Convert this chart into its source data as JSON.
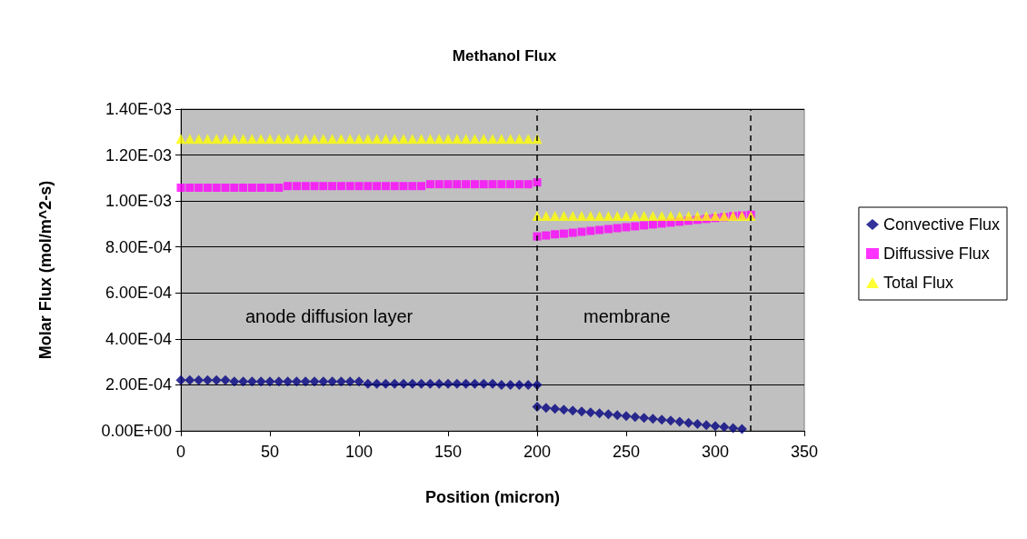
{
  "chart_data": {
    "type": "scatter",
    "title": "Methanol Flux",
    "xlabel": "Position (micron)",
    "ylabel": "Molar Flux (mol/m^2-s)",
    "xlim": [
      0,
      350
    ],
    "xticks": [
      0,
      50,
      100,
      150,
      200,
      250,
      300,
      350
    ],
    "ylim": [
      0,
      0.0014
    ],
    "yticks": [
      {
        "value": 0,
        "label": "0.00E+00"
      },
      {
        "value": 0.0002,
        "label": "2.00E-04"
      },
      {
        "value": 0.0004,
        "label": "4.00E-04"
      },
      {
        "value": 0.0006,
        "label": "6.00E-04"
      },
      {
        "value": 0.0008,
        "label": "8.00E-04"
      },
      {
        "value": 0.001,
        "label": "1.00E-03"
      },
      {
        "value": 0.0012,
        "label": "1.20E-03"
      },
      {
        "value": 0.0014,
        "label": "1.40E-03"
      }
    ],
    "grid": "y",
    "legend": "right",
    "series": [
      {
        "name": "Convective Flux",
        "color": "#000080",
        "marker": "diamond",
        "x": [
          0,
          5,
          10,
          15,
          20,
          25,
          30,
          35,
          40,
          45,
          50,
          55,
          60,
          65,
          70,
          75,
          80,
          85,
          90,
          95,
          100,
          105,
          110,
          115,
          120,
          125,
          130,
          135,
          140,
          145,
          150,
          155,
          160,
          165,
          170,
          175,
          180,
          185,
          190,
          195,
          200,
          200,
          205,
          210,
          215,
          220,
          225,
          230,
          235,
          240,
          245,
          250,
          255,
          260,
          265,
          270,
          275,
          280,
          285,
          290,
          295,
          300,
          305,
          310,
          315
        ],
        "values": [
          0.00022,
          0.00022,
          0.00022,
          0.00022,
          0.00022,
          0.00022,
          0.000215,
          0.000215,
          0.000215,
          0.000215,
          0.000215,
          0.000215,
          0.000215,
          0.000215,
          0.000215,
          0.000215,
          0.000215,
          0.000215,
          0.000215,
          0.000215,
          0.000215,
          0.000205,
          0.000205,
          0.000205,
          0.000205,
          0.000205,
          0.000205,
          0.000205,
          0.000205,
          0.000205,
          0.000205,
          0.000205,
          0.000205,
          0.000205,
          0.000205,
          0.000205,
          0.0002,
          0.0002,
          0.0002,
          0.0002,
          0.0002,
          0.000105,
          0.0001,
          9.6e-05,
          9.2e-05,
          8.8e-05,
          8.4e-05,
          8e-05,
          7.6e-05,
          7.2e-05,
          6.8e-05,
          6.4e-05,
          6e-05,
          5.6e-05,
          5.2e-05,
          4.8e-05,
          4.4e-05,
          4e-05,
          3.5e-05,
          3e-05,
          2.5e-05,
          2.1e-05,
          1.7e-05,
          1.2e-05,
          8e-06
        ]
      },
      {
        "name": "Diffussive Flux",
        "color": "#ff00ff",
        "marker": "square",
        "x": [
          0,
          5,
          10,
          15,
          20,
          25,
          30,
          35,
          40,
          45,
          50,
          55,
          60,
          65,
          70,
          75,
          80,
          85,
          90,
          95,
          100,
          105,
          110,
          115,
          120,
          125,
          130,
          135,
          140,
          145,
          150,
          155,
          160,
          165,
          170,
          175,
          180,
          185,
          190,
          195,
          200,
          200,
          205,
          210,
          215,
          220,
          225,
          230,
          235,
          240,
          245,
          250,
          255,
          260,
          265,
          270,
          275,
          280,
          285,
          290,
          295,
          300,
          305,
          310,
          315,
          320
        ],
        "values": [
          0.001058,
          0.001058,
          0.001058,
          0.001058,
          0.001058,
          0.001058,
          0.001058,
          0.001058,
          0.001058,
          0.001058,
          0.001058,
          0.001058,
          0.001065,
          0.001065,
          0.001065,
          0.001065,
          0.001065,
          0.001065,
          0.001065,
          0.001065,
          0.001065,
          0.001065,
          0.001065,
          0.001065,
          0.001065,
          0.001065,
          0.001065,
          0.001065,
          0.001073,
          0.001073,
          0.001073,
          0.001073,
          0.001073,
          0.001073,
          0.001073,
          0.001073,
          0.001073,
          0.001073,
          0.001073,
          0.001073,
          0.001081,
          0.000846,
          0.00085,
          0.000855,
          0.000858,
          0.000862,
          0.000866,
          0.00087,
          0.000874,
          0.000878,
          0.000882,
          0.000886,
          0.00089,
          0.000894,
          0.000898,
          0.000902,
          0.000906,
          0.00091,
          0.000914,
          0.000918,
          0.000922,
          0.000926,
          0.00093,
          0.000934,
          0.000937,
          0.00094
        ]
      },
      {
        "name": "Total Flux",
        "color": "#ffff00",
        "marker": "triangle",
        "x": [
          0,
          5,
          10,
          15,
          20,
          25,
          30,
          35,
          40,
          45,
          50,
          55,
          60,
          65,
          70,
          75,
          80,
          85,
          90,
          95,
          100,
          105,
          110,
          115,
          120,
          125,
          130,
          135,
          140,
          145,
          150,
          155,
          160,
          165,
          170,
          175,
          180,
          185,
          190,
          195,
          200,
          200,
          205,
          210,
          215,
          220,
          225,
          230,
          235,
          240,
          245,
          250,
          255,
          260,
          265,
          270,
          275,
          280,
          285,
          290,
          295,
          300,
          305,
          310,
          315,
          320
        ],
        "values": [
          0.00127,
          0.00127,
          0.00127,
          0.00127,
          0.00127,
          0.00127,
          0.00127,
          0.00127,
          0.00127,
          0.00127,
          0.00127,
          0.00127,
          0.00127,
          0.00127,
          0.00127,
          0.00127,
          0.00127,
          0.00127,
          0.00127,
          0.00127,
          0.00127,
          0.00127,
          0.00127,
          0.00127,
          0.00127,
          0.00127,
          0.00127,
          0.00127,
          0.00127,
          0.00127,
          0.00127,
          0.00127,
          0.00127,
          0.00127,
          0.00127,
          0.00127,
          0.00127,
          0.00127,
          0.00127,
          0.00127,
          0.00127,
          0.000935,
          0.000935,
          0.000935,
          0.000935,
          0.000935,
          0.000935,
          0.000935,
          0.000935,
          0.000935,
          0.000935,
          0.000935,
          0.000935,
          0.000935,
          0.000935,
          0.000935,
          0.000935,
          0.000935,
          0.000935,
          0.000935,
          0.000935,
          0.000935,
          0.000935,
          0.000935,
          0.000935,
          0.000935
        ]
      }
    ],
    "ref_lines": [
      {
        "axis": "x",
        "value": 200,
        "color": "#000000",
        "line_style": "dashed"
      },
      {
        "axis": "x",
        "value": 320,
        "color": "#000000",
        "line_style": "dashed"
      }
    ],
    "annotations": [
      "anode diffusion layer",
      "membrane"
    ]
  }
}
